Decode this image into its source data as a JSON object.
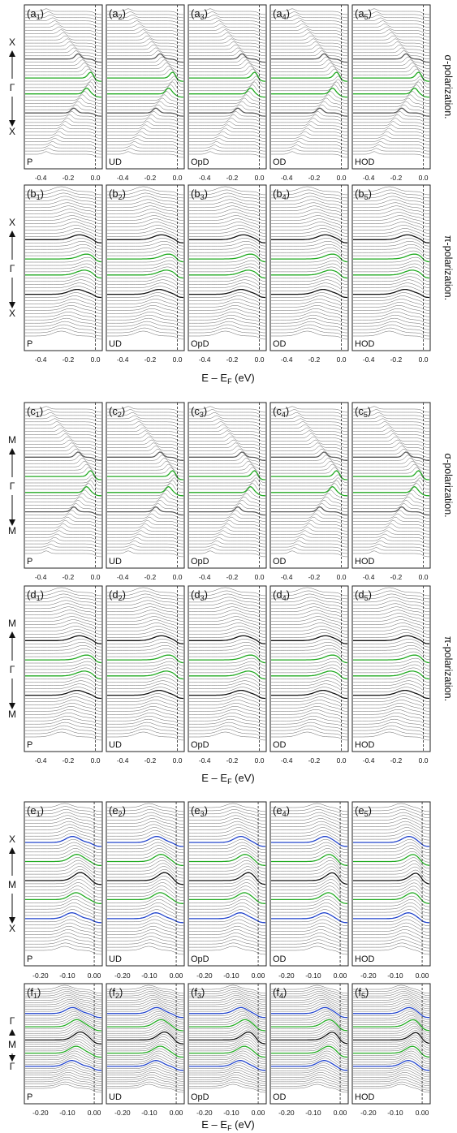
{
  "figure": {
    "groups": [
      {
        "id": "ab",
        "rows": [
          {
            "letter": "a",
            "side_label": "σ-polarization.",
            "k_top": "X",
            "k_mid": "Γ",
            "k_bot": "X",
            "peak_style": "sharp",
            "highlight_colors": [
              "#5a5a5a",
              "#22aa22",
              "#22aa22",
              "#5a5a5a"
            ]
          },
          {
            "letter": "b",
            "side_label": "π-polarization.",
            "k_top": "X",
            "k_mid": "Γ",
            "k_bot": "X",
            "peak_style": "broad",
            "highlight_colors": [
              "#111111",
              "#22aa22",
              "#22aa22",
              "#111111"
            ]
          }
        ],
        "x_ticks": [
          "-0.4",
          "-0.2",
          "0.0"
        ],
        "x_range": [
          -0.52,
          0.05
        ],
        "x_label": "E – E",
        "x_label_sub": "F",
        "x_label_unit": " (eV)"
      },
      {
        "id": "cd",
        "rows": [
          {
            "letter": "c",
            "side_label": "σ-polarization.",
            "k_top": "M",
            "k_mid": "Γ",
            "k_bot": "M",
            "peak_style": "sharp",
            "highlight_colors": [
              "#5a5a5a",
              "#22aa22",
              "#22aa22",
              "#5a5a5a"
            ]
          },
          {
            "letter": "d",
            "side_label": "π-polarization.",
            "k_top": "M",
            "k_mid": "Γ",
            "k_bot": "M",
            "peak_style": "broad",
            "highlight_colors": [
              "#111111",
              "#22aa22",
              "#22aa22",
              "#111111"
            ]
          }
        ],
        "x_ticks": [
          "-0.4",
          "-0.2",
          "0.0"
        ],
        "x_range": [
          -0.52,
          0.05
        ],
        "x_label": "E – E",
        "x_label_sub": "F",
        "x_label_unit": " (eV)"
      },
      {
        "id": "ef",
        "rows": [
          {
            "letter": "e",
            "side_label": "",
            "k_top": "X",
            "k_mid": "M",
            "k_bot": "X",
            "peak_style": "mid",
            "highlight_colors": [
              "#2244cc",
              "#22aa22",
              "#111111",
              "#22aa22",
              "#2244cc"
            ]
          },
          {
            "letter": "f",
            "side_label": "",
            "k_top": "Γ",
            "k_mid": "M",
            "k_bot": "Γ",
            "peak_style": "mid",
            "highlight_colors": [
              "#2244cc",
              "#22aa22",
              "#111111",
              "#22aa22",
              "#2244cc"
            ]
          }
        ],
        "x_ticks": [
          "-0.20",
          "-0.10",
          "0.00"
        ],
        "x_range": [
          -0.26,
          0.03
        ],
        "x_label": "E – E",
        "x_label_sub": "F",
        "x_label_unit": " (eV)"
      }
    ],
    "doping_labels": [
      "P",
      "UD",
      "OpD",
      "OD",
      "HOD"
    ],
    "panel_subscripts": [
      "1",
      "2",
      "3",
      "4",
      "5"
    ]
  },
  "chart_data": {
    "type": "line",
    "title": "",
    "description_of_axes": "Energy distribution curve stacks; x axis E – E_F (eV), curves offset vertically by momentum",
    "panels_per_row": 5,
    "rows": [
      "a",
      "b",
      "c",
      "d",
      "e",
      "f"
    ],
    "xlabel": "E – E_F (eV)",
    "x_ticks_abcd": [
      -0.4,
      -0.2,
      0.0
    ],
    "x_ticks_ef": [
      -0.2,
      -0.1,
      0.0
    ],
    "fermi_level_marker": 0.0,
    "doping_levels": [
      "P",
      "UD",
      "OpD",
      "OD",
      "HOD"
    ]
  }
}
